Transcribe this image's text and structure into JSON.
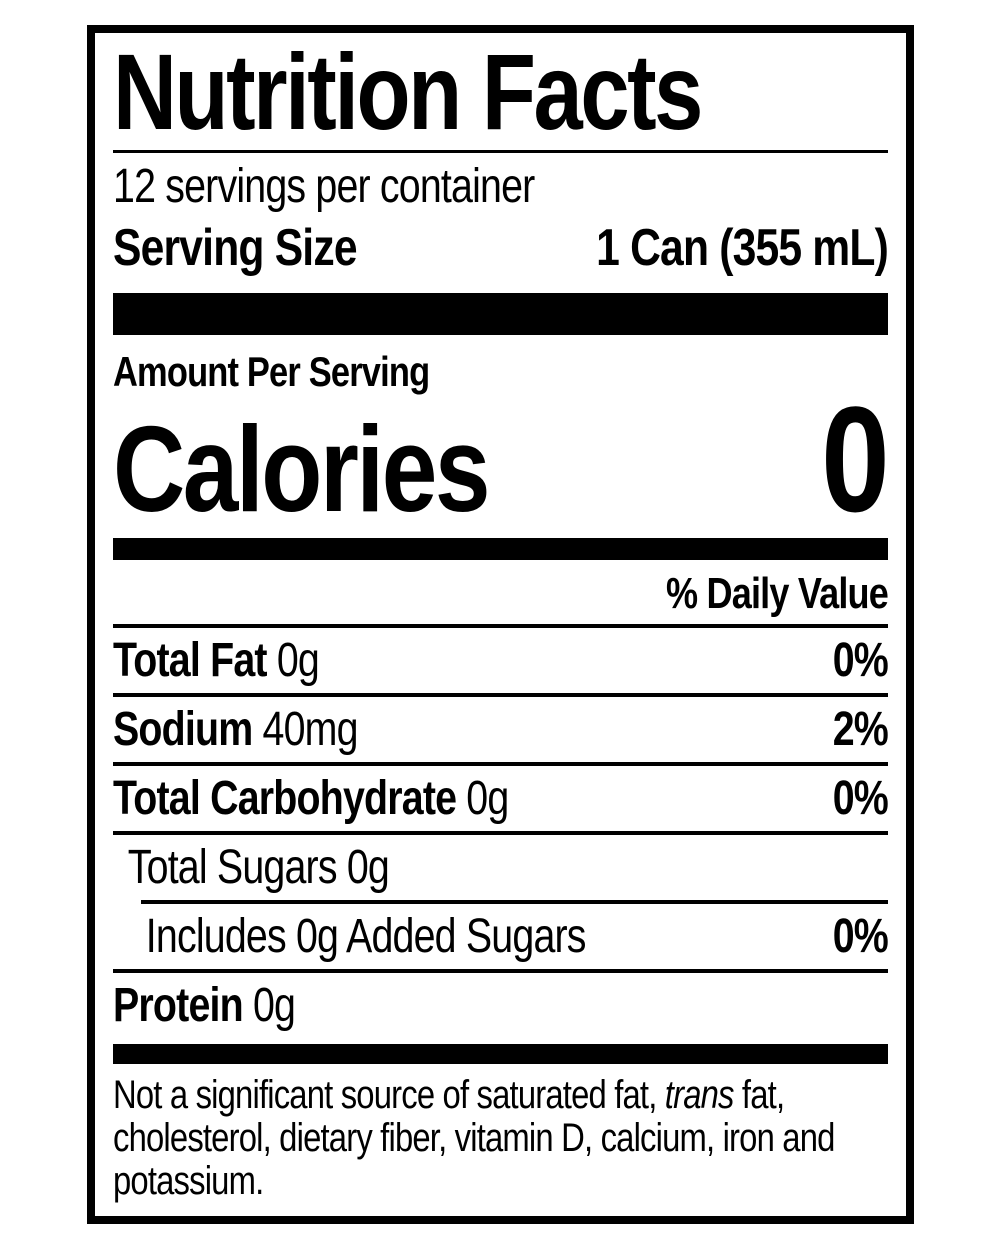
{
  "label": {
    "title": "Nutrition Facts",
    "servings_per_container": "12 servings per container",
    "serving_size": {
      "label": "Serving Size",
      "value": "1 Can (355 mL)"
    },
    "amount_per_serving": "Amount Per Serving",
    "calories": {
      "label": "Calories",
      "value": "0"
    },
    "daily_value_header": "% Daily Value",
    "rows": [
      {
        "name": "Total Fat",
        "amount": "0g",
        "dv": "0%",
        "bold": true,
        "indent": 0,
        "sep": "full"
      },
      {
        "name": "Sodium",
        "amount": "40mg",
        "dv": "2%",
        "bold": true,
        "indent": 0,
        "sep": "full"
      },
      {
        "name": "Total Carbohydrate",
        "amount": "0g",
        "dv": "0%",
        "bold": true,
        "indent": 0,
        "sep": "full"
      },
      {
        "name": "Total Sugars",
        "amount": "0g",
        "dv": "",
        "bold": false,
        "indent": 1,
        "sep": "indent"
      },
      {
        "name": "Includes 0g Added Sugars",
        "amount": "",
        "dv": "0%",
        "bold": false,
        "indent": 2,
        "sep": "full"
      },
      {
        "name": "Protein",
        "amount": "0g",
        "dv": "",
        "bold": true,
        "indent": 0,
        "sep": "none"
      }
    ],
    "footnote": {
      "prefix": "Not a significant source of saturated fat, ",
      "italic_word": "trans",
      "suffix": " fat, cholesterol, dietary fiber, vitamin D, calcium, iron and potassium."
    },
    "colors": {
      "ink": "#000000",
      "background": "#ffffff"
    }
  }
}
